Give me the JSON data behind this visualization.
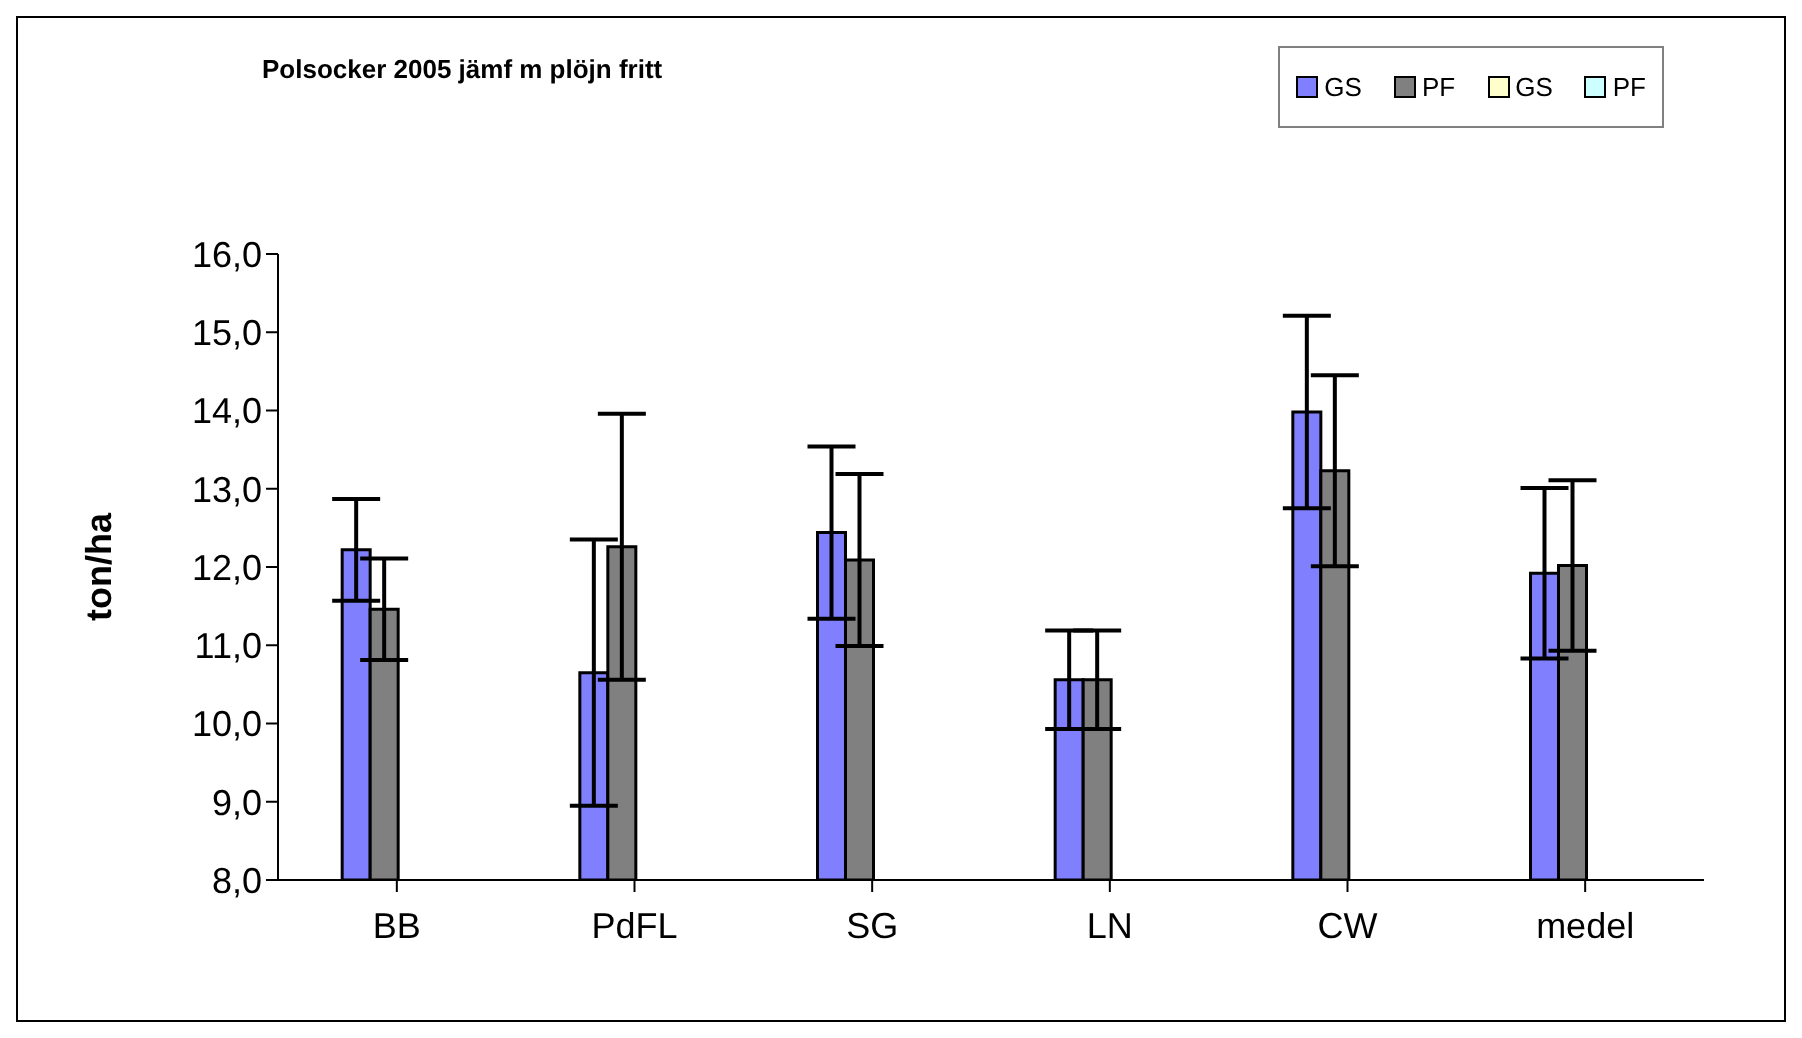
{
  "chart_data": {
    "type": "bar",
    "title": "Polsocker 2005 jämf m plöjn fritt",
    "ylabel": "ton/ha",
    "categories": [
      "BB",
      "PdFL",
      "SG",
      "LN",
      "CW",
      "medel"
    ],
    "series": [
      {
        "name": "GS",
        "color": "#8080ff",
        "values": [
          12.22,
          10.65,
          12.44,
          10.56,
          13.98,
          11.92
        ],
        "errors": [
          0.65,
          1.7,
          1.1,
          0.63,
          1.23,
          1.09
        ]
      },
      {
        "name": "PF",
        "color": "#808080",
        "values": [
          11.46,
          12.26,
          12.09,
          10.56,
          13.23,
          12.02
        ],
        "errors": [
          0.65,
          1.7,
          1.1,
          0.63,
          1.22,
          1.09
        ]
      },
      {
        "name": "GS",
        "color": "#ffffcc",
        "values": [
          null,
          null,
          null,
          null,
          null,
          null
        ]
      },
      {
        "name": "PF",
        "color": "#ccffff",
        "values": [
          null,
          null,
          null,
          null,
          null,
          null
        ]
      }
    ],
    "ylim": [
      8,
      16
    ],
    "yticks": [
      {
        "value": 8,
        "label": "8,0"
      },
      {
        "value": 9,
        "label": "9,0"
      },
      {
        "value": 10,
        "label": "10,0"
      },
      {
        "value": 11,
        "label": "11,0"
      },
      {
        "value": 12,
        "label": "12,0"
      },
      {
        "value": 13,
        "label": "13,0"
      },
      {
        "value": 14,
        "label": "14,0"
      },
      {
        "value": 15,
        "label": "15,0"
      },
      {
        "value": 16,
        "label": "16,0"
      }
    ],
    "legend": "top right",
    "grid": false
  }
}
